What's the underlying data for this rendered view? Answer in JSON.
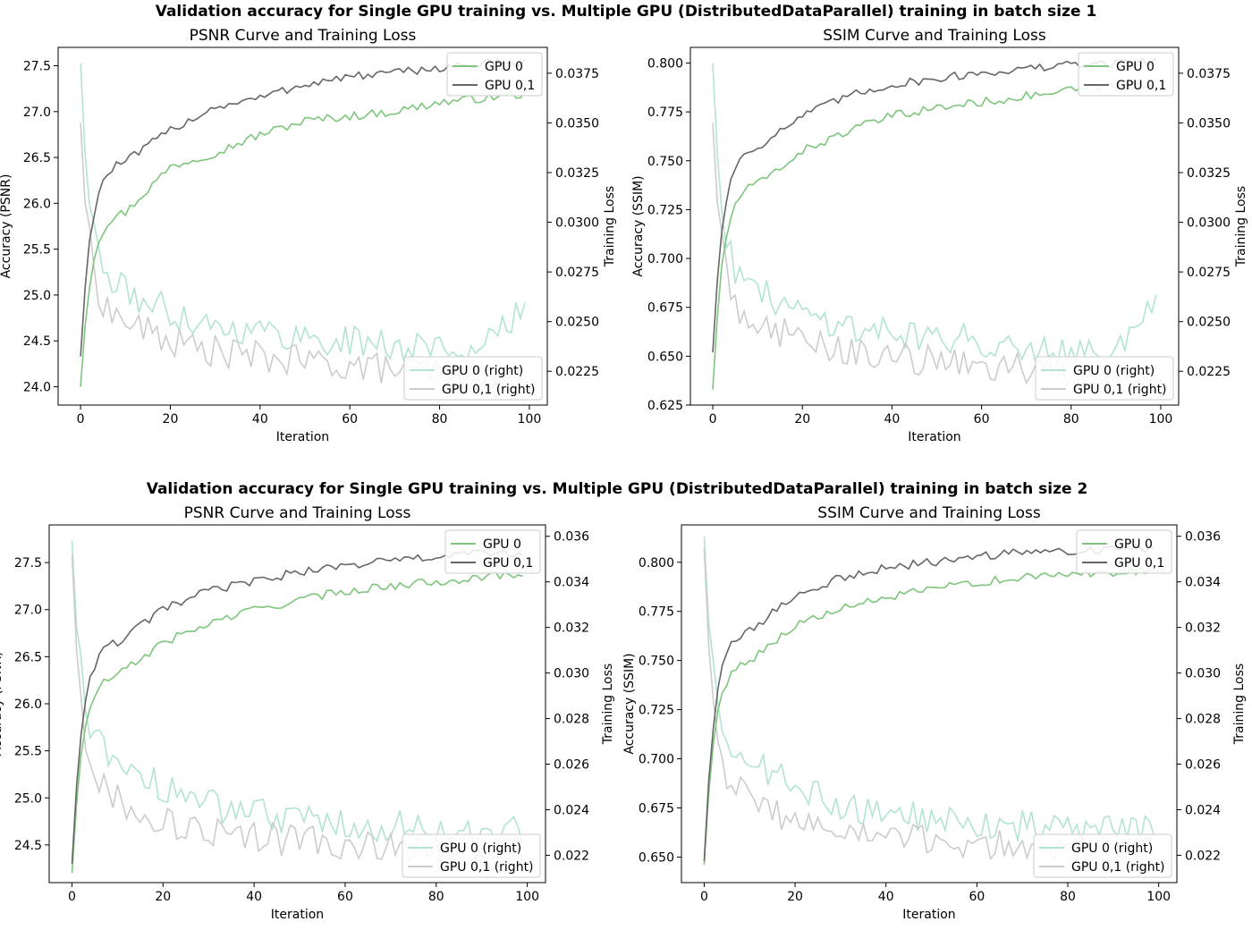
{
  "figure": {
    "rows": [
      {
        "suptitle": "Validation accuracy for Single GPU training vs. Multiple GPU (DistributedDataParallel) training in batch size 1"
      },
      {
        "suptitle": "Validation accuracy for Single GPU training vs. Multiple GPU (DistributedDataParallel) training in batch size 2"
      }
    ]
  },
  "colors": {
    "gpu0": "#7dc67c",
    "gpu01": "#666666",
    "gpu0_right": "#b2e3d4",
    "gpu01_right": "#cccccc"
  },
  "chart_data": [
    {
      "type": "line",
      "title": "PSNR Curve and Training Loss",
      "xlabel": "Iteration",
      "ylabel": "Accuracy (PSNR)",
      "ylabel_right": "Training Loss",
      "xlim": [
        -5,
        104
      ],
      "ylim": [
        23.8,
        27.7
      ],
      "ylim_right": [
        0.0208,
        0.0388
      ],
      "xticks": [
        0,
        20,
        40,
        60,
        80,
        100
      ],
      "yticks": [
        "24.0",
        "24.5",
        "25.0",
        "25.5",
        "26.0",
        "26.5",
        "27.0",
        "27.5"
      ],
      "yticks_right": [
        "0.0225",
        "0.0250",
        "0.0275",
        "0.0300",
        "0.0325",
        "0.0350",
        "0.0375"
      ],
      "legend_left": {
        "position": "upper-right",
        "entries": [
          "GPU 0",
          "GPU 0,1"
        ]
      },
      "legend_right": {
        "position": "lower-right",
        "entries": [
          "GPU 0 (right)",
          "GPU 0,1 (right)"
        ]
      },
      "x": [
        0,
        10,
        20,
        30,
        40,
        50,
        60,
        70,
        80,
        90,
        100
      ],
      "series": [
        {
          "name": "GPU 0",
          "axis": "left",
          "values": [
            24.0,
            25.9,
            26.4,
            26.55,
            26.75,
            26.9,
            26.95,
            27.0,
            27.1,
            27.15,
            27.2
          ]
        },
        {
          "name": "GPU 0,1",
          "axis": "left",
          "values": [
            24.33,
            26.45,
            26.8,
            27.05,
            27.15,
            27.3,
            27.38,
            27.42,
            27.48,
            27.52,
            27.55
          ]
        },
        {
          "name": "GPU 0 (right)",
          "axis": "right",
          "values": [
            0.038,
            0.0265,
            0.0255,
            0.0248,
            0.0245,
            0.0242,
            0.024,
            0.0238,
            0.0237,
            0.0236,
            0.026
          ]
        },
        {
          "name": "GPU 0,1 (right)",
          "axis": "right",
          "values": [
            0.035,
            0.025,
            0.024,
            0.0235,
            0.0232,
            0.023,
            0.0228,
            0.0226,
            0.0225,
            0.0224,
            0.0222
          ]
        }
      ]
    },
    {
      "type": "line",
      "title": "SSIM Curve and Training Loss",
      "xlabel": "Iteration",
      "ylabel": "Accuracy (SSIM)",
      "ylabel_right": "Training Loss",
      "xlim": [
        -5,
        104
      ],
      "ylim": [
        0.625,
        0.808
      ],
      "ylim_right": [
        0.0208,
        0.0388
      ],
      "xticks": [
        0,
        20,
        40,
        60,
        80,
        100
      ],
      "yticks": [
        "0.625",
        "0.650",
        "0.675",
        "0.700",
        "0.725",
        "0.750",
        "0.775",
        "0.800"
      ],
      "yticks_right": [
        "0.0225",
        "0.0250",
        "0.0275",
        "0.0300",
        "0.0325",
        "0.0350",
        "0.0375"
      ],
      "legend_left": {
        "position": "upper-right",
        "entries": [
          "GPU 0",
          "GPU 0,1"
        ]
      },
      "legend_right": {
        "position": "lower-right",
        "entries": [
          "GPU 0 (right)",
          "GPU 0,1 (right)"
        ]
      },
      "x": [
        0,
        10,
        20,
        30,
        40,
        50,
        60,
        70,
        80,
        90,
        100
      ],
      "series": [
        {
          "name": "GPU 0",
          "axis": "left",
          "values": [
            0.633,
            0.738,
            0.755,
            0.765,
            0.773,
            0.777,
            0.78,
            0.783,
            0.786,
            0.788,
            0.79
          ]
        },
        {
          "name": "GPU 0,1",
          "axis": "left",
          "values": [
            0.652,
            0.757,
            0.773,
            0.783,
            0.789,
            0.792,
            0.795,
            0.797,
            0.799,
            0.8,
            0.801
          ]
        },
        {
          "name": "GPU 0 (right)",
          "axis": "right",
          "values": [
            0.038,
            0.0265,
            0.0255,
            0.0248,
            0.0245,
            0.0242,
            0.024,
            0.0238,
            0.0237,
            0.0236,
            0.026
          ]
        },
        {
          "name": "GPU 0,1 (right)",
          "axis": "right",
          "values": [
            0.035,
            0.025,
            0.024,
            0.0235,
            0.0232,
            0.023,
            0.0228,
            0.0226,
            0.0225,
            0.0224,
            0.0222
          ]
        }
      ]
    },
    {
      "type": "line",
      "title": "PSNR Curve and Training Loss",
      "xlabel": "Iteration",
      "ylabel": "Accuracy (PSNR)",
      "ylabel_right": "Training Loss",
      "xlim": [
        -5,
        104
      ],
      "ylim": [
        24.1,
        27.9
      ],
      "ylim_right": [
        0.0208,
        0.0365
      ],
      "xticks": [
        0,
        20,
        40,
        60,
        80,
        100
      ],
      "yticks": [
        "24.5",
        "25.0",
        "25.5",
        "26.0",
        "26.5",
        "27.0",
        "27.5"
      ],
      "yticks_right": [
        "0.022",
        "0.024",
        "0.026",
        "0.028",
        "0.030",
        "0.032",
        "0.034",
        "0.036"
      ],
      "legend_left": {
        "position": "upper-right",
        "entries": [
          "GPU 0",
          "GPU 0,1"
        ]
      },
      "legend_right": {
        "position": "lower-right",
        "entries": [
          "GPU 0 (right)",
          "GPU 0,1 (right)"
        ]
      },
      "x": [
        0,
        10,
        20,
        30,
        40,
        50,
        60,
        70,
        80,
        90,
        100
      ],
      "series": [
        {
          "name": "GPU 0",
          "axis": "left",
          "values": [
            24.2,
            26.3,
            26.65,
            26.85,
            27.0,
            27.1,
            27.2,
            27.25,
            27.3,
            27.35,
            27.38
          ]
        },
        {
          "name": "GPU 0,1",
          "axis": "left",
          "values": [
            24.3,
            26.65,
            27.0,
            27.2,
            27.3,
            27.4,
            27.47,
            27.52,
            27.56,
            27.6,
            27.6
          ]
        },
        {
          "name": "GPU 0 (right)",
          "axis": "right",
          "values": [
            0.0358,
            0.0262,
            0.025,
            0.0242,
            0.0238,
            0.0236,
            0.0234,
            0.0233,
            0.0232,
            0.0231,
            0.023
          ]
        },
        {
          "name": "GPU 0,1 (right)",
          "axis": "right",
          "values": [
            0.0352,
            0.0245,
            0.0235,
            0.023,
            0.0228,
            0.0226,
            0.0225,
            0.0224,
            0.0223,
            0.0222,
            0.0222
          ]
        }
      ]
    },
    {
      "type": "line",
      "title": "SSIM Curve and Training Loss",
      "xlabel": "Iteration",
      "ylabel": "Accuracy (SSIM)",
      "ylabel_right": "Training Loss",
      "xlim": [
        -5,
        104
      ],
      "ylim": [
        0.637,
        0.819
      ],
      "ylim_right": [
        0.0208,
        0.0365
      ],
      "xticks": [
        0,
        20,
        40,
        60,
        80,
        100
      ],
      "yticks": [
        "0.650",
        "0.675",
        "0.700",
        "0.725",
        "0.750",
        "0.775",
        "0.800"
      ],
      "yticks_right": [
        "0.022",
        "0.024",
        "0.026",
        "0.028",
        "0.030",
        "0.032",
        "0.034",
        "0.036"
      ],
      "legend_left": {
        "position": "upper-right",
        "entries": [
          "GPU 0",
          "GPU 0,1"
        ]
      },
      "legend_right": {
        "position": "lower-right",
        "entries": [
          "GPU 0 (right)",
          "GPU 0,1 (right)"
        ]
      },
      "x": [
        0,
        10,
        20,
        30,
        40,
        50,
        60,
        70,
        80,
        90,
        100
      ],
      "series": [
        {
          "name": "GPU 0",
          "axis": "left",
          "values": [
            0.646,
            0.75,
            0.768,
            0.776,
            0.782,
            0.786,
            0.79,
            0.792,
            0.794,
            0.795,
            0.796
          ]
        },
        {
          "name": "GPU 0,1",
          "axis": "left",
          "values": [
            0.648,
            0.765,
            0.783,
            0.792,
            0.797,
            0.8,
            0.803,
            0.805,
            0.806,
            0.807,
            0.807
          ]
        },
        {
          "name": "GPU 0 (right)",
          "axis": "right",
          "values": [
            0.036,
            0.0262,
            0.025,
            0.0242,
            0.0238,
            0.0236,
            0.0234,
            0.0233,
            0.0232,
            0.0231,
            0.023
          ]
        },
        {
          "name": "GPU 0,1 (right)",
          "axis": "right",
          "values": [
            0.0355,
            0.0245,
            0.0235,
            0.023,
            0.0228,
            0.0226,
            0.0225,
            0.0224,
            0.0223,
            0.0222,
            0.0222
          ]
        }
      ]
    }
  ]
}
